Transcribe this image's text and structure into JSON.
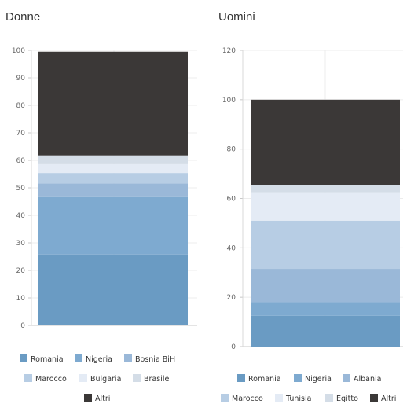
{
  "chart_data": [
    {
      "type": "bar",
      "stacked": true,
      "title": "Donne",
      "categories": [
        ""
      ],
      "ylim": [
        0,
        100
      ],
      "yticks": [
        "0",
        "10",
        "20",
        "30",
        "40",
        "50",
        "60",
        "70",
        "80",
        "90",
        "100"
      ],
      "grid": true,
      "legend_placement": "bottom",
      "series": [
        {
          "name": "Romania",
          "values": [
            25.8
          ],
          "color": "#6a9bc3"
        },
        {
          "name": "Nigeria",
          "values": [
            20.8
          ],
          "color": "#7eaad0"
        },
        {
          "name": "Bosnia BiH",
          "values": [
            5.0
          ],
          "color": "#9ab8d8"
        },
        {
          "name": "Marocco",
          "values": [
            3.8
          ],
          "color": "#b7cde4"
        },
        {
          "name": "Bulgaria",
          "values": [
            3.2
          ],
          "color": "#e4ebf5"
        },
        {
          "name": "Brasile",
          "values": [
            3.2
          ],
          "color": "#d4dde7"
        },
        {
          "name": "Altri",
          "values": [
            37.7
          ],
          "color": "#3b3837"
        }
      ]
    },
    {
      "type": "bar",
      "stacked": true,
      "title": "Uomini",
      "categories": [
        ""
      ],
      "ylim": [
        0,
        120
      ],
      "yticks": [
        "0",
        "20",
        "40",
        "60",
        "80",
        "100",
        "120"
      ],
      "grid": true,
      "legend_placement": "bottom",
      "series": [
        {
          "name": "Romania",
          "values": [
            12.5
          ],
          "color": "#6a9bc3"
        },
        {
          "name": "Nigeria",
          "values": [
            5.5
          ],
          "color": "#7eaad0"
        },
        {
          "name": "Albania",
          "values": [
            13.5
          ],
          "color": "#9ab8d8"
        },
        {
          "name": "Marocco",
          "values": [
            19.5
          ],
          "color": "#b7cde4"
        },
        {
          "name": "Tunisia",
          "values": [
            11.5
          ],
          "color": "#e4ebf5"
        },
        {
          "name": "Egitto",
          "values": [
            3.0
          ],
          "color": "#d4dde7"
        },
        {
          "name": "Altri",
          "values": [
            34.5
          ],
          "color": "#3b3837"
        }
      ]
    }
  ]
}
